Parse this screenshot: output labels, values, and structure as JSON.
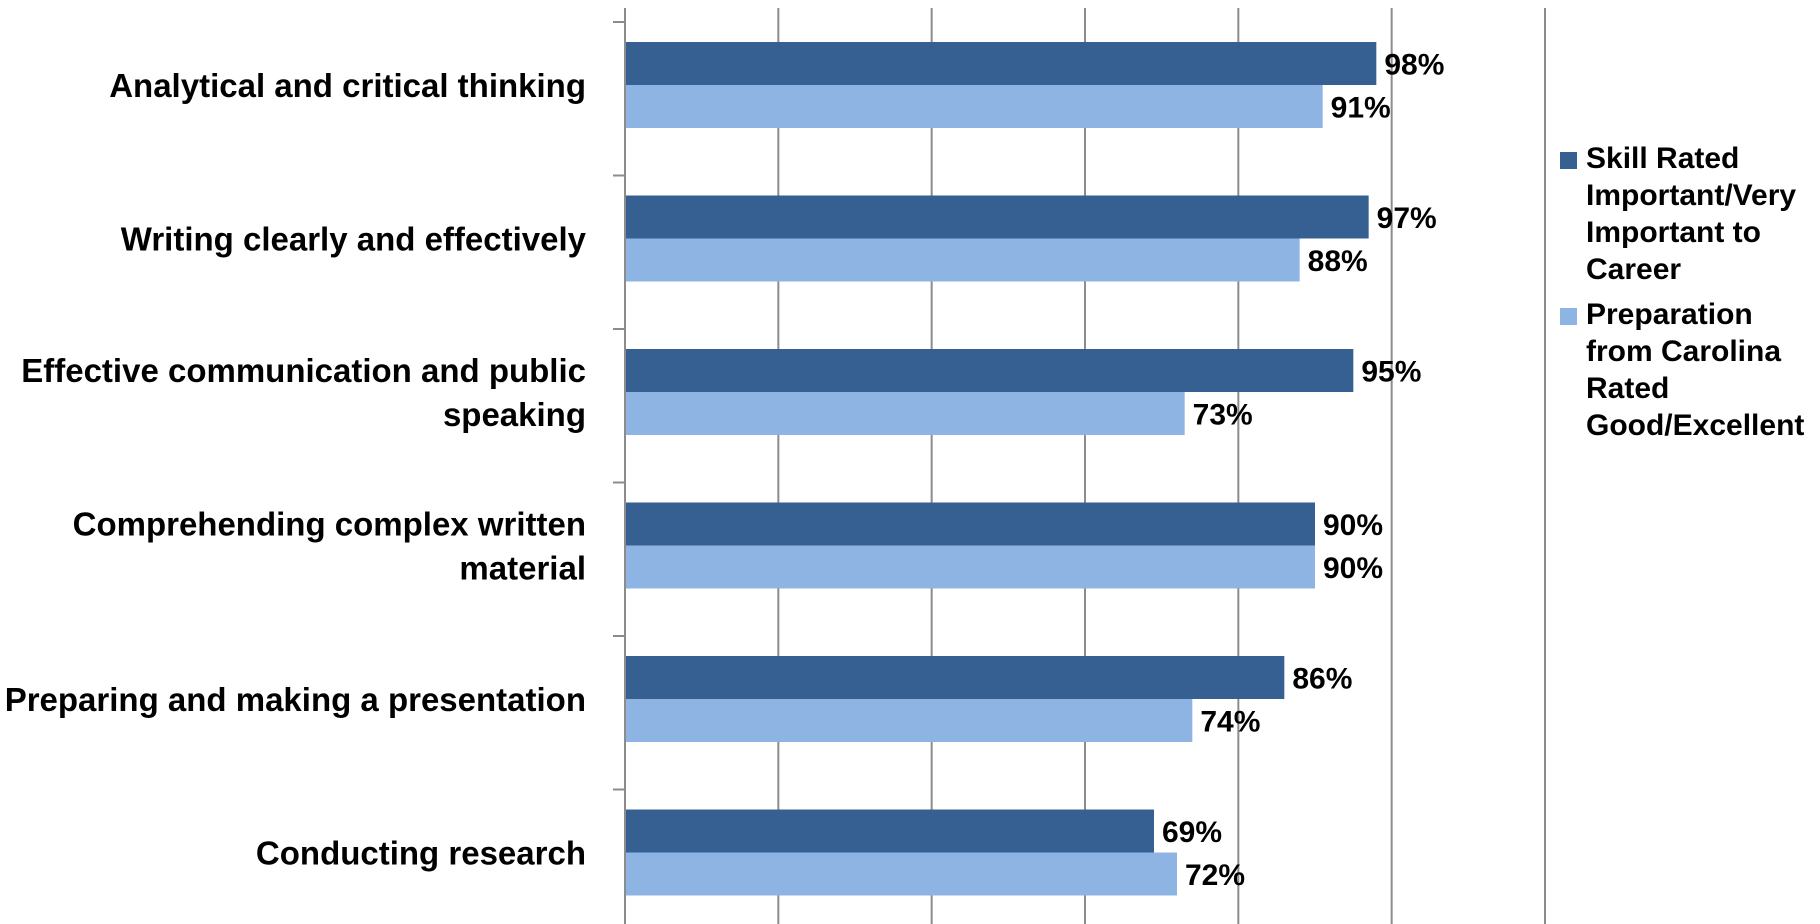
{
  "chart_data": {
    "type": "bar",
    "orientation": "horizontal",
    "categories": [
      [
        "Analytical and critical thinking"
      ],
      [
        "Writing clearly and effectively"
      ],
      [
        "Effective communication and public",
        "speaking"
      ],
      [
        "Comprehending complex written",
        "material"
      ],
      [
        "Preparing and making a presentation"
      ],
      [
        "Conducting research"
      ]
    ],
    "series": [
      {
        "name": "Skill Rated Important/Very Important to Career",
        "legend_lines": [
          "Skill Rated",
          "Important/Very",
          "Important to",
          "Career"
        ],
        "color": "#376092",
        "values": [
          98,
          97,
          95,
          90,
          86,
          69
        ],
        "labels": [
          "98%",
          "97%",
          "95%",
          "90%",
          "86%",
          "69%"
        ]
      },
      {
        "name": "Preparation from Carolina Rated Good/Excellent",
        "legend_lines": [
          "Preparation",
          "from Carolina",
          "Rated",
          "Good/Excellent"
        ],
        "color": "#8eb4e3",
        "values": [
          91,
          88,
          73,
          90,
          74,
          72
        ],
        "labels": [
          "91%",
          "88%",
          "73%",
          "90%",
          "74%",
          "72%"
        ]
      }
    ],
    "xlim": [
      0,
      120
    ],
    "x_gridline_step": 20,
    "x_tick_labels_visible": false,
    "grid": true,
    "legend_position": "right"
  }
}
